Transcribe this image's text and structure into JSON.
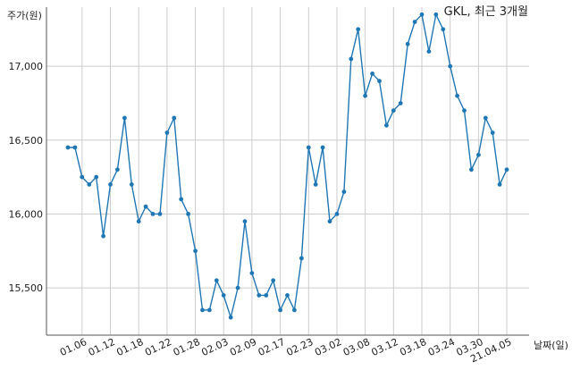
{
  "chart_data": {
    "type": "line",
    "title": "GKL, 최근 3개월",
    "ylabel": "주가(원)",
    "xlabel": "날짜(일)",
    "ylim": [
      15180,
      17400
    ],
    "yticks": [
      15500,
      16000,
      16500,
      17000
    ],
    "ytick_labels": [
      "15,500",
      "16,000",
      "16,500",
      "17,000"
    ],
    "xticks": [
      {
        "idx": 2,
        "label": "01.06"
      },
      {
        "idx": 6,
        "label": "01.12"
      },
      {
        "idx": 10,
        "label": "01.18"
      },
      {
        "idx": 14,
        "label": "01.22"
      },
      {
        "idx": 18,
        "label": "01.28"
      },
      {
        "idx": 22,
        "label": "02.03"
      },
      {
        "idx": 26,
        "label": "02.09"
      },
      {
        "idx": 30,
        "label": "02.17"
      },
      {
        "idx": 34,
        "label": "02.23"
      },
      {
        "idx": 38,
        "label": "03.02"
      },
      {
        "idx": 42,
        "label": "03.08"
      },
      {
        "idx": 46,
        "label": "03.12"
      },
      {
        "idx": 50,
        "label": "03.18"
      },
      {
        "idx": 54,
        "label": "03.24"
      },
      {
        "idx": 58,
        "label": "03.30"
      },
      {
        "idx": 62,
        "label": "21.04.05"
      }
    ],
    "grid": true,
    "color": "#1f77b4",
    "series": [
      {
        "values": [
          16450,
          16450,
          16250,
          16200,
          16250,
          15850,
          16200,
          16300,
          16650,
          16200,
          15950,
          16050,
          16000,
          16000,
          16550,
          16650,
          16100,
          16000,
          15750,
          15350,
          15350,
          15550,
          15450,
          15300,
          15500,
          15950,
          15600,
          15450,
          15450,
          15550,
          15350,
          15450,
          15350,
          15700,
          16450,
          16200,
          16450,
          15950,
          16000,
          16150,
          17050,
          17250,
          16800,
          16950,
          16900,
          16600,
          16700,
          16750,
          17150,
          17300,
          17350,
          17100,
          17350,
          17250,
          17000,
          16800,
          16700,
          16300,
          16400,
          16650,
          16550,
          16200,
          16300
        ]
      }
    ]
  }
}
